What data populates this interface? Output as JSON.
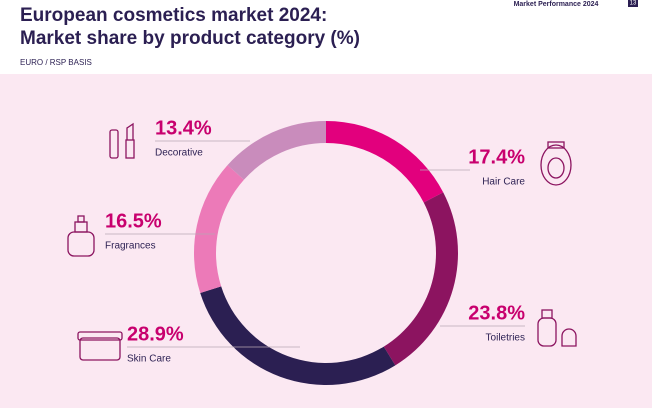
{
  "page": {
    "header": "Market Performance 2024",
    "page_number": "13"
  },
  "chart_data": {
    "type": "donut",
    "title_lines": [
      "European cosmetics market 2024:",
      "Market share by product category (%)"
    ],
    "subtitle": "EURO / RSP BASIS",
    "categories": [
      "Hair Care",
      "Toiletries",
      "Skin Care",
      "Fragrances",
      "Decorative"
    ],
    "values": [
      17.4,
      23.8,
      28.9,
      16.5,
      13.4
    ],
    "value_labels": [
      "17.4%",
      "23.8%",
      "28.9%",
      "16.5%",
      "13.4%"
    ],
    "colors": [
      "#e2007d",
      "#8c1460",
      "#2b1f52",
      "#ec7ab8",
      "#c98cbc"
    ]
  }
}
